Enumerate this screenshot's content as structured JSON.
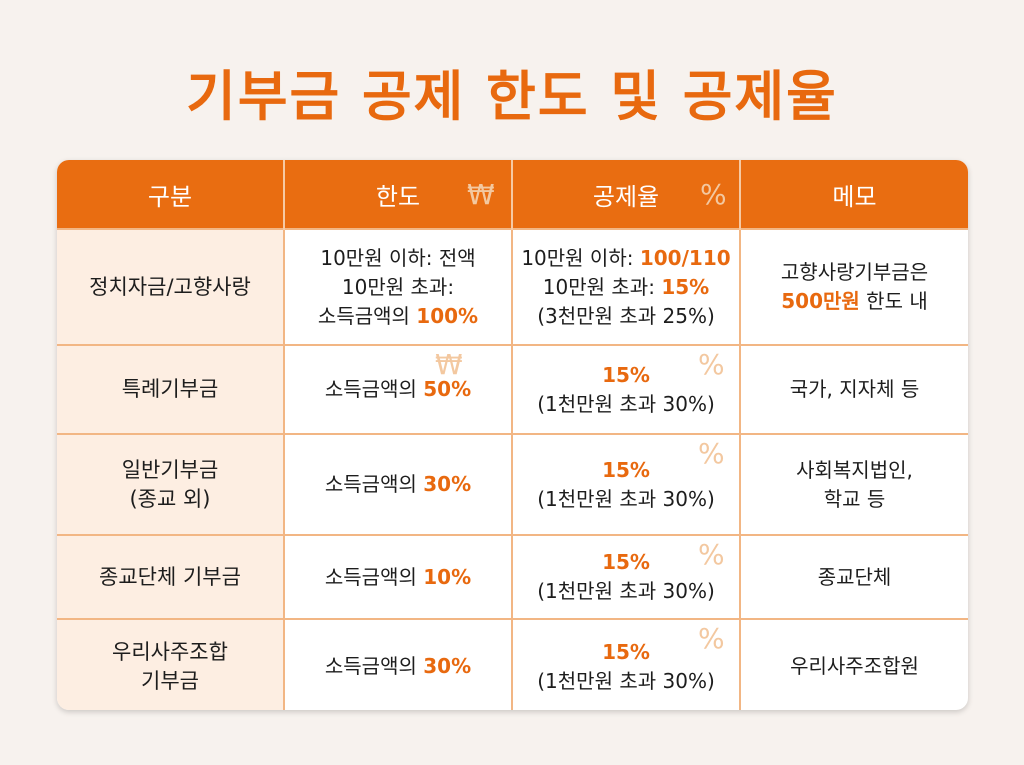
{
  "title": "기부금 공제 한도 및 공제율",
  "headers": [
    "구분",
    "한도",
    "공제율",
    "메모"
  ],
  "header_symbols": {
    "limit": "₩",
    "rate": "%"
  },
  "rows": [
    {
      "category": [
        "정치자금/고향사랑"
      ],
      "limit": [
        [
          "10만원 이하: 전액"
        ],
        [
          "10만원 초과:"
        ],
        [
          "소득금액의 ",
          "100%"
        ]
      ],
      "rate": [
        [
          "10만원 이하: ",
          "100/110"
        ],
        [
          "10만원 초과: ",
          "15%"
        ],
        [
          "(3천만원 초과 25%)"
        ]
      ],
      "memo": [
        [
          "고향사랑기부금은"
        ],
        [
          "500만원",
          " 한도 내"
        ]
      ]
    },
    {
      "category": [
        "특례기부금"
      ],
      "limit": [
        [
          "소득금액의 ",
          "50%"
        ]
      ],
      "rate": [
        [
          "15%"
        ],
        [
          "(1천만원 초과 30%)"
        ]
      ],
      "memo": [
        [
          "국가, 지자체 등"
        ]
      ]
    },
    {
      "category": [
        "일반기부금",
        "(종교 외)"
      ],
      "limit": [
        [
          "소득금액의 ",
          "30%"
        ]
      ],
      "rate": [
        [
          "15%"
        ],
        [
          "(1천만원 초과 30%)"
        ]
      ],
      "memo": [
        [
          "사회복지법인,"
        ],
        [
          "학교 등"
        ]
      ]
    },
    {
      "category": [
        "종교단체 기부금"
      ],
      "limit": [
        [
          "소득금액의 ",
          "10%"
        ]
      ],
      "rate": [
        [
          "15%"
        ],
        [
          "(1천만원 초과 30%)"
        ]
      ],
      "memo": [
        [
          "종교단체"
        ]
      ]
    },
    {
      "category": [
        "우리사주조합",
        "기부금"
      ],
      "limit": [
        [
          "소득금액의 ",
          "30%"
        ]
      ],
      "rate": [
        [
          "15%"
        ],
        [
          "(1천만원 초과 30%)"
        ]
      ],
      "memo": [
        [
          "우리사주조합원"
        ]
      ]
    }
  ],
  "colors": {
    "accent": "#e8690f",
    "header_bg": "#e96d11",
    "first_col_bg": "#fdeee2",
    "border": "#f2b684"
  }
}
